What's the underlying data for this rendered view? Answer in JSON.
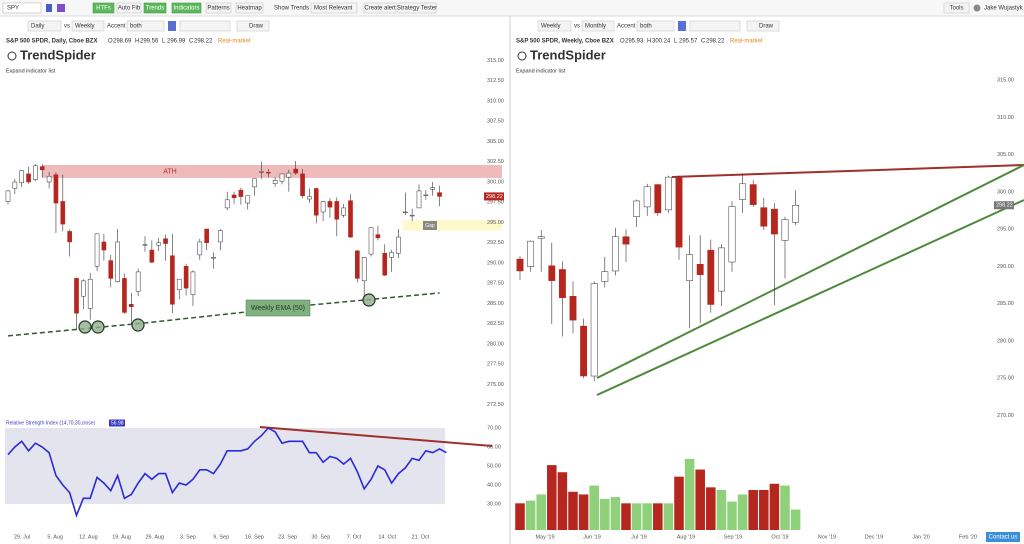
{
  "toolbar": {
    "symbol": "SPY",
    "buttons": [
      "HTFs",
      "Auto Fib",
      "Trends",
      "Indicators",
      "Patterns",
      "Heatmap"
    ],
    "show_trends": "Show Trends",
    "most_relevant": "Most Relevant",
    "create_alert": "Create alert",
    "strategy_tester": "Strategy Tester",
    "tools": "Tools",
    "user": "Jake Wujastyk"
  },
  "panels": [
    {
      "controls": {
        "timeframe": "Daily",
        "vs": "vs",
        "secondary": "Weekly",
        "accent_label": "Accent",
        "accent": "both",
        "draw": "Draw"
      },
      "header": {
        "name": "S&P 500 SPDR, Daily, Cboe BZX",
        "ohlc": [
          {
            "key": "O",
            "value": 298.69
          },
          {
            "key": "H",
            "value": 299.56
          },
          {
            "key": "L",
            "value": 296.99
          },
          {
            "key": "C",
            "value": 298.22
          }
        ],
        "status": "Real-market"
      },
      "logo": "TrendSpider",
      "expand": "Expand indicator list"
    },
    {
      "controls": {
        "timeframe": "Weekly",
        "vs": "vs",
        "secondary": "Monthly",
        "accent_label": "Accent",
        "accent": "both",
        "draw": "Draw"
      },
      "header": {
        "name": "S&P 500 SPDR, Weekly, Cboe BZX",
        "ohlc": [
          {
            "key": "O",
            "value": 295.93
          },
          {
            "key": "H",
            "value": 300.24
          },
          {
            "key": "L",
            "value": 295.57
          },
          {
            "key": "C",
            "value": 298.22
          }
        ],
        "status": "Real-market"
      },
      "logo": "TrendSpider",
      "expand": "Expand indicator list"
    }
  ],
  "contact": "Contact us",
  "chart_data": [
    {
      "type": "candlestick",
      "up_color": "#ffffff",
      "down_color": "#b5261e",
      "candles": [
        [
          297.6,
          299.0,
          297.2,
          298.9
        ],
        [
          299.2,
          300.4,
          298.5,
          300.0
        ],
        [
          299.9,
          301.5,
          299.4,
          301.4
        ],
        [
          301.0,
          301.9,
          299.8,
          300.0
        ],
        [
          300.3,
          302.2,
          300.1,
          302.0
        ],
        [
          301.9,
          302.2,
          300.6,
          301.5
        ],
        [
          300.0,
          301.2,
          299.2,
          300.7
        ],
        [
          300.9,
          301.2,
          293.7,
          297.4
        ],
        [
          297.6,
          300.9,
          293.9,
          294.8
        ],
        [
          293.9,
          294.1,
          290.8,
          292.6
        ],
        [
          288.1,
          288.2,
          281.7,
          283.8
        ],
        [
          285.9,
          288.0,
          284.3,
          287.8
        ],
        [
          284.4,
          288.8,
          283.0,
          288.0
        ],
        [
          289.6,
          293.6,
          289.0,
          293.6
        ],
        [
          292.6,
          293.6,
          290.3,
          291.6
        ],
        [
          290.3,
          291.0,
          287.0,
          288.1
        ],
        [
          287.7,
          294.2,
          287.6,
          292.6
        ],
        [
          288.1,
          288.7,
          283.7,
          283.9
        ],
        [
          284.9,
          286.3,
          282.4,
          284.6
        ],
        [
          286.5,
          289.3,
          285.9,
          288.9
        ],
        [
          292.2,
          293.3,
          291.4,
          292.3
        ],
        [
          291.6,
          292.8,
          290.0,
          290.1
        ],
        [
          292.2,
          293.1,
          291.5,
          292.5
        ],
        [
          293.0,
          293.5,
          290.3,
          292.4
        ],
        [
          290.9,
          293.6,
          283.8,
          284.9
        ],
        [
          286.7,
          288.0,
          285.5,
          288.0
        ],
        [
          289.6,
          289.9,
          286.0,
          286.9
        ],
        [
          286.1,
          289.1,
          284.7,
          288.9
        ],
        [
          291.0,
          293.0,
          290.4,
          292.6
        ],
        [
          294.2,
          294.2,
          291.6,
          292.5
        ],
        [
          290.6,
          291.3,
          289.3,
          290.7
        ],
        [
          292.6,
          294.2,
          291.6,
          294.0
        ],
        [
          296.8,
          298.8,
          296.5,
          297.8
        ],
        [
          298.4,
          298.8,
          297.3,
          298.05
        ],
        [
          299.0,
          299.3,
          297.2,
          298.2
        ],
        [
          297.4,
          298.3,
          296.6,
          298.3
        ],
        [
          299.4,
          300.4,
          298.3,
          300.4
        ],
        [
          301.2,
          302.5,
          300.4,
          301.3
        ],
        [
          301.2,
          301.6,
          300.6,
          301.1
        ],
        [
          299.8,
          300.6,
          299.4,
          300.2
        ],
        [
          300.1,
          301.0,
          299.7,
          301.0
        ],
        [
          300.6,
          301.5,
          298.8,
          301.1
        ],
        [
          301.6,
          302.6,
          300.9,
          301.1
        ],
        [
          301.0,
          301.6,
          298.0,
          298.3
        ],
        [
          297.9,
          299.2,
          297.4,
          298.2
        ],
        [
          299.2,
          299.3,
          294.9,
          295.9
        ],
        [
          296.3,
          297.7,
          295.2,
          297.6
        ],
        [
          297.6,
          298.0,
          295.6,
          296.9
        ],
        [
          297.6,
          298.1,
          293.3,
          295.4
        ],
        [
          295.9,
          297.3,
          295.6,
          296.8
        ],
        [
          297.7,
          298.5,
          293.1,
          293.2
        ],
        [
          291.5,
          291.6,
          287.6,
          288.1
        ],
        [
          287.8,
          290.6,
          284.8,
          290.7
        ],
        [
          291.1,
          294.4,
          290.8,
          294.35
        ],
        [
          293.5,
          294.6,
          292.8,
          293.1
        ],
        [
          291.2,
          292.3,
          288.4,
          288.5
        ],
        [
          290.7,
          291.6,
          288.9,
          291.3
        ],
        [
          291.2,
          294.2,
          290.6,
          293.2
        ],
        [
          296.3,
          298.7,
          295.9,
          296.3
        ],
        [
          295.9,
          296.7,
          295.2,
          295.9
        ],
        [
          296.8,
          299.7,
          296.8,
          298.9
        ],
        [
          298.4,
          299.0,
          297.8,
          298.4
        ],
        [
          299.1,
          300.0,
          298.3,
          299.3
        ],
        [
          298.69,
          299.56,
          296.99,
          298.22
        ]
      ],
      "ylim": [
        271.5,
        316
      ],
      "yticks": [
        {
          "value": 315,
          "label": "315.00"
        },
        {
          "value": 312.5,
          "label": "312.50"
        },
        {
          "value": 310,
          "label": "310.00"
        },
        {
          "value": 307.5,
          "label": "307.50"
        },
        {
          "value": 305,
          "label": "305.00"
        },
        {
          "value": 302.5,
          "label": "302.50"
        },
        {
          "value": 300,
          "label": "300.00"
        },
        {
          "value": 297.5,
          "label": "297.50"
        },
        {
          "value": 295,
          "label": "295.00"
        },
        {
          "value": 292.5,
          "label": "292.50"
        },
        {
          "value": 290,
          "label": "290.00"
        },
        {
          "value": 287.5,
          "label": "287.50"
        },
        {
          "value": 285,
          "label": "285.00"
        },
        {
          "value": 282.5,
          "label": "282.50"
        },
        {
          "value": 280,
          "label": "280.00"
        },
        {
          "value": 277.5,
          "label": "277.50"
        },
        {
          "value": 275,
          "label": "275.00"
        },
        {
          "value": 272.5,
          "label": "272.50"
        }
      ],
      "x_labels": [
        "29. Jul",
        "5. Aug",
        "12. Aug",
        "19. Aug",
        "26. Aug",
        "3. Sep",
        "9. Sep",
        "16. Sep",
        "23. Sep",
        "30. Sep",
        "7. Oct",
        "14. Oct",
        "21. Oct"
      ],
      "ath": {
        "label": "ATH",
        "band": [
          300.5,
          302.1
        ],
        "color": "#e8a3a3"
      },
      "gap": {
        "label": "Gap",
        "band": [
          294.0,
          295.3
        ],
        "color": "#fff6b8"
      },
      "ema": {
        "label": "Weekly EMA (50)",
        "index": [
          0,
          20,
          44,
          63
        ],
        "values": [
          281.0,
          282.6,
          284.8,
          286.3
        ],
        "color": "#2f5a2f"
      }
    },
    {
      "type": "line",
      "title": "Relative Strength Index (14,70,30,close)",
      "color": "#2b2bd6",
      "band": [
        30,
        70
      ],
      "values": [
        56,
        60,
        63,
        58,
        62,
        60,
        57,
        45,
        40,
        36,
        24,
        33,
        33,
        44,
        41,
        37,
        45,
        33,
        35,
        41,
        46,
        43,
        46,
        46,
        36,
        41,
        40,
        43,
        48,
        48,
        46,
        51,
        58,
        58,
        58,
        59,
        63,
        66,
        70,
        68,
        62,
        63,
        63,
        63,
        57,
        57,
        52,
        55,
        54,
        51,
        54,
        47,
        38,
        43,
        50,
        48,
        41,
        46,
        49,
        54,
        53,
        58,
        57,
        59,
        56.98
      ],
      "ylim": [
        20,
        75
      ],
      "yticks": [
        {
          "value": 70,
          "label": "70.00"
        },
        {
          "value": 60,
          "label": "60.00"
        },
        {
          "value": 50,
          "label": "50.00"
        },
        {
          "value": 40,
          "label": "40.00"
        },
        {
          "value": 30,
          "label": "30.00"
        }
      ]
    },
    {
      "type": "candlestick",
      "up_color": "#ffffff",
      "down_color": "#b5261e",
      "candles": [
        [
          291.0,
          291.4,
          288.2,
          289.4
        ],
        [
          290.0,
          293.5,
          289.3,
          293.4
        ],
        [
          293.8,
          294.9,
          289.3,
          294.0
        ],
        [
          290.1,
          293.2,
          282.3,
          288.1
        ],
        [
          289.6,
          290.7,
          280.6,
          285.8
        ],
        [
          286.0,
          288.0,
          281.0,
          282.8
        ],
        [
          282.0,
          283.0,
          275.0,
          275.3
        ],
        [
          275.3,
          288.0,
          274.6,
          287.7
        ],
        [
          288.0,
          291.3,
          287.2,
          289.3
        ],
        [
          289.4,
          295.2,
          288.8,
          294.0
        ],
        [
          294.0,
          295.0,
          290.6,
          293.0
        ],
        [
          296.7,
          299.0,
          295.3,
          298.8
        ],
        [
          298.0,
          301.1,
          296.8,
          300.7
        ],
        [
          301.0,
          301.1,
          296.8,
          297.2
        ],
        [
          297.6,
          302.2,
          297.2,
          302.0
        ],
        [
          301.9,
          302.2,
          290.9,
          292.6
        ],
        [
          288.1,
          294.2,
          281.7,
          291.6
        ],
        [
          290.3,
          294.2,
          282.4,
          288.9
        ],
        [
          292.2,
          293.6,
          283.8,
          284.9
        ],
        [
          286.7,
          293.0,
          284.7,
          292.5
        ],
        [
          290.6,
          298.8,
          289.3,
          298.05
        ],
        [
          299.0,
          302.5,
          297.2,
          301.1
        ],
        [
          301.0,
          301.6,
          298.0,
          298.3
        ],
        [
          297.9,
          299.2,
          294.9,
          295.4
        ],
        [
          297.7,
          298.5,
          284.8,
          294.35
        ],
        [
          293.5,
          296.7,
          288.4,
          296.3
        ],
        [
          295.93,
          300.24,
          295.57,
          298.22
        ]
      ],
      "ylim": [
        268,
        316
      ],
      "yticks": [
        {
          "value": 315,
          "label": "315.00"
        },
        {
          "value": 310,
          "label": "310.00"
        },
        {
          "value": 305,
          "label": "305.00"
        },
        {
          "value": 300,
          "label": "300.00"
        },
        {
          "value": 295,
          "label": "295.00"
        },
        {
          "value": 290,
          "label": "290.00"
        },
        {
          "value": 285,
          "label": "285.00"
        },
        {
          "value": 280,
          "label": "280.00"
        },
        {
          "value": 275,
          "label": "275.00"
        },
        {
          "value": 270,
          "label": "270.00"
        }
      ],
      "x_labels": [
        "May '19",
        "Jun '19",
        "Jul '19",
        "Aug '19",
        "Sep '19",
        "Oct '19",
        "Nov '19",
        "Dec '19",
        "Jan '20",
        "Feb '20"
      ]
    },
    {
      "type": "bar",
      "up_color": "#8fd17a",
      "down_color": "#b5261e",
      "values": [
        60,
        66,
        80,
        146,
        130,
        86,
        80,
        100,
        70,
        74,
        60,
        60,
        60,
        60,
        60,
        120,
        160,
        136,
        96,
        90,
        64,
        80,
        90,
        90,
        104,
        100,
        46
      ],
      "ylim": [
        0,
        180
      ]
    }
  ]
}
